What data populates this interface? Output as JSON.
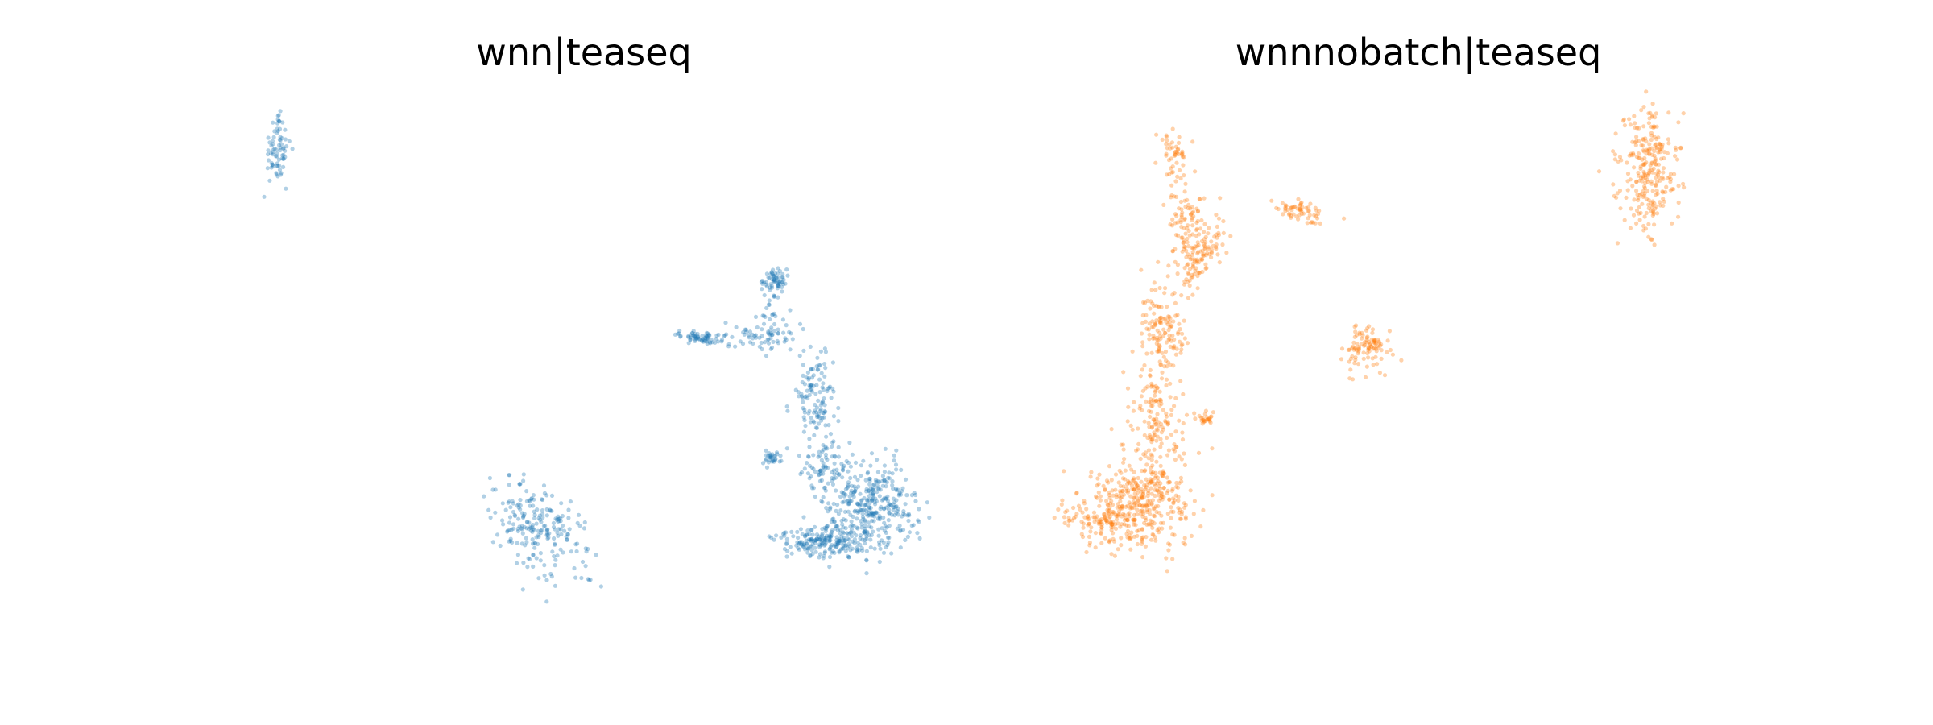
{
  "chart_data": [
    {
      "type": "scatter",
      "title": "wnn|teaseq",
      "xlabel": "",
      "ylabel": "",
      "grid": false,
      "axes_visible": false,
      "color": "#1f77b4",
      "point_alpha": 0.35,
      "xlim": [
        0,
        10
      ],
      "ylim": [
        0,
        10
      ],
      "clusters": [
        {
          "cx": 0.58,
          "cy": 9.0,
          "sx": 0.09,
          "sy": 0.3,
          "n": 70
        },
        {
          "cx": 0.6,
          "cy": 9.6,
          "sx": 0.03,
          "sy": 0.06,
          "n": 6
        },
        {
          "cx": 4.2,
          "cy": 2.1,
          "sx": 0.28,
          "sy": 0.42,
          "n": 220,
          "rot": 0.5
        },
        {
          "cx": 6.48,
          "cy": 5.6,
          "sx": 0.23,
          "sy": 0.05,
          "n": 70,
          "rot": -0.15
        },
        {
          "cx": 7.45,
          "cy": 6.65,
          "sx": 0.08,
          "sy": 0.12,
          "n": 55
        },
        {
          "cx": 7.4,
          "cy": 6.0,
          "sx": 0.1,
          "sy": 0.35,
          "n": 40
        },
        {
          "cx": 7.25,
          "cy": 5.65,
          "sx": 0.25,
          "sy": 0.12,
          "n": 50
        },
        {
          "cx": 7.4,
          "cy": 3.4,
          "sx": 0.07,
          "sy": 0.07,
          "n": 30
        },
        {
          "cx": 8.0,
          "cy": 4.5,
          "sx": 0.15,
          "sy": 0.45,
          "n": 120
        },
        {
          "cx": 8.2,
          "cy": 3.3,
          "sx": 0.2,
          "sy": 0.3,
          "n": 80
        },
        {
          "cx": 8.8,
          "cy": 2.5,
          "sx": 0.3,
          "sy": 0.4,
          "n": 350
        },
        {
          "cx": 8.1,
          "cy": 1.9,
          "sx": 0.35,
          "sy": 0.15,
          "n": 200
        }
      ]
    },
    {
      "type": "scatter",
      "title": "wnnnobatch|teaseq",
      "xlabel": "",
      "ylabel": "",
      "grid": false,
      "axes_visible": false,
      "color": "#ff7f0e",
      "point_alpha": 0.35,
      "xlim": [
        0,
        10
      ],
      "ylim": [
        0,
        10
      ],
      "clusters": [
        {
          "cx": 1.55,
          "cy": 9.0,
          "sx": 0.1,
          "sy": 0.25,
          "n": 45
        },
        {
          "cx": 1.7,
          "cy": 7.9,
          "sx": 0.12,
          "sy": 0.4,
          "n": 60
        },
        {
          "cx": 1.9,
          "cy": 7.4,
          "sx": 0.2,
          "sy": 0.3,
          "n": 90
        },
        {
          "cx": 1.8,
          "cy": 6.9,
          "sx": 0.12,
          "sy": 0.25,
          "n": 40
        },
        {
          "cx": 3.3,
          "cy": 7.9,
          "sx": 0.18,
          "sy": 0.1,
          "n": 60,
          "rot": -0.3
        },
        {
          "cx": 1.4,
          "cy": 5.6,
          "sx": 0.15,
          "sy": 0.5,
          "n": 150
        },
        {
          "cx": 1.3,
          "cy": 4.0,
          "sx": 0.18,
          "sy": 0.55,
          "n": 130
        },
        {
          "cx": 2.0,
          "cy": 4.1,
          "sx": 0.06,
          "sy": 0.07,
          "n": 25
        },
        {
          "cx": 1.1,
          "cy": 2.6,
          "sx": 0.35,
          "sy": 0.45,
          "n": 350
        },
        {
          "cx": 0.55,
          "cy": 2.3,
          "sx": 0.25,
          "sy": 0.2,
          "n": 120
        },
        {
          "cx": 4.2,
          "cy": 5.4,
          "sx": 0.17,
          "sy": 0.2,
          "n": 100
        },
        {
          "cx": 8.1,
          "cy": 8.6,
          "sx": 0.2,
          "sy": 0.58,
          "n": 260
        }
      ]
    }
  ]
}
